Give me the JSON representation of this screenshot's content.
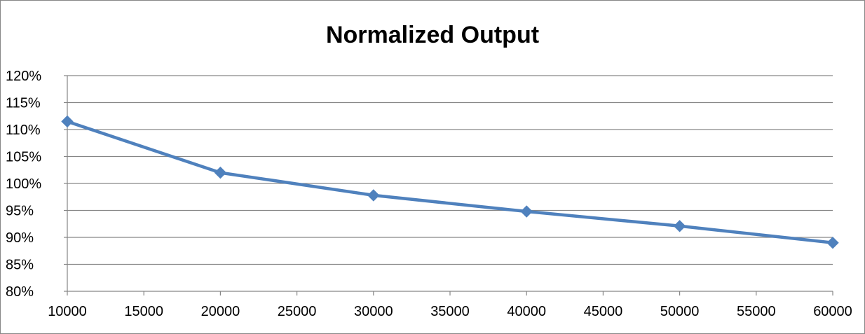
{
  "chart_data": {
    "type": "line",
    "title": "Normalized Output",
    "xlabel": "",
    "ylabel": "",
    "x": [
      10000,
      20000,
      30000,
      40000,
      50000,
      60000
    ],
    "series": [
      {
        "values": [
          111.5,
          102.0,
          97.8,
          94.8,
          92.1,
          89.0
        ],
        "color": "#4F81BD",
        "marker": "diamond"
      }
    ],
    "xlim": [
      10000,
      60000
    ],
    "xticks": [
      10000,
      15000,
      20000,
      25000,
      30000,
      35000,
      40000,
      45000,
      50000,
      55000,
      60000
    ],
    "xtick_labels": [
      "10000",
      "15000",
      "20000",
      "25000",
      "30000",
      "35000",
      "40000",
      "45000",
      "50000",
      "55000",
      "60000"
    ],
    "ylim": [
      80,
      120
    ],
    "yticks": [
      80,
      85,
      90,
      95,
      100,
      105,
      110,
      115,
      120
    ],
    "ytick_labels": [
      "80%",
      "85%",
      "90%",
      "95%",
      "100%",
      "105%",
      "110%",
      "115%",
      "120%"
    ],
    "grid": "horizontal",
    "legend": "none",
    "gridline_color": "#868686",
    "axis_color": "#868686"
  }
}
